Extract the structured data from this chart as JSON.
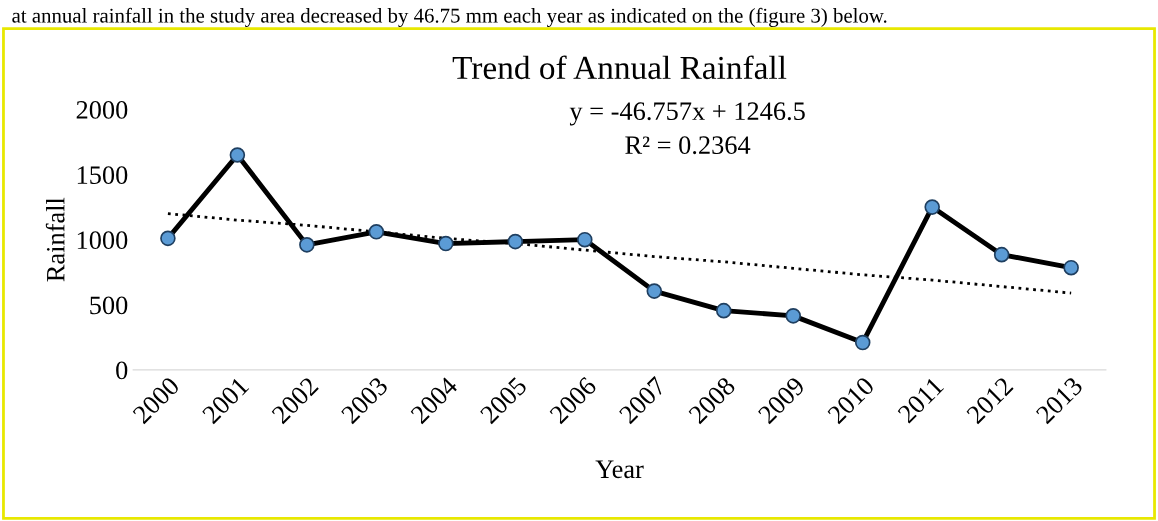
{
  "chart_data": {
    "type": "line",
    "title": "Trend of Annual Rainfall",
    "xlabel": "Year",
    "ylabel": "Rainfall",
    "categories": [
      "2000",
      "2001",
      "2002",
      "2003",
      "2004",
      "2005",
      "2006",
      "2007",
      "2008",
      "2009",
      "2010",
      "2011",
      "2012",
      "2013"
    ],
    "series": [
      {
        "color": "#000000",
        "marker": "circle",
        "line_style": "solid",
        "values": [
          1010,
          1650,
          960,
          1060,
          970,
          985,
          1000,
          605,
          455,
          415,
          210,
          1250,
          885,
          785
        ]
      },
      {
        "color": "#000000",
        "marker": "none",
        "line_style": "dotted",
        "values": [
          1200,
          1150,
          1110,
          1060,
          1010,
          970,
          920,
          870,
          830,
          780,
          730,
          690,
          640,
          590
        ]
      }
    ],
    "ylim": [
      0,
      2000
    ],
    "yticks": [
      0,
      500,
      1000,
      1500,
      2000
    ],
    "grid": false,
    "legend": false,
    "annotations": [
      "at annual rainfall in the study area decreased by 46.75 mm each year as indicated on the (figure 3) below.",
      "y = -46.757x + 1246.5",
      "R² = 0.2364"
    ]
  }
}
